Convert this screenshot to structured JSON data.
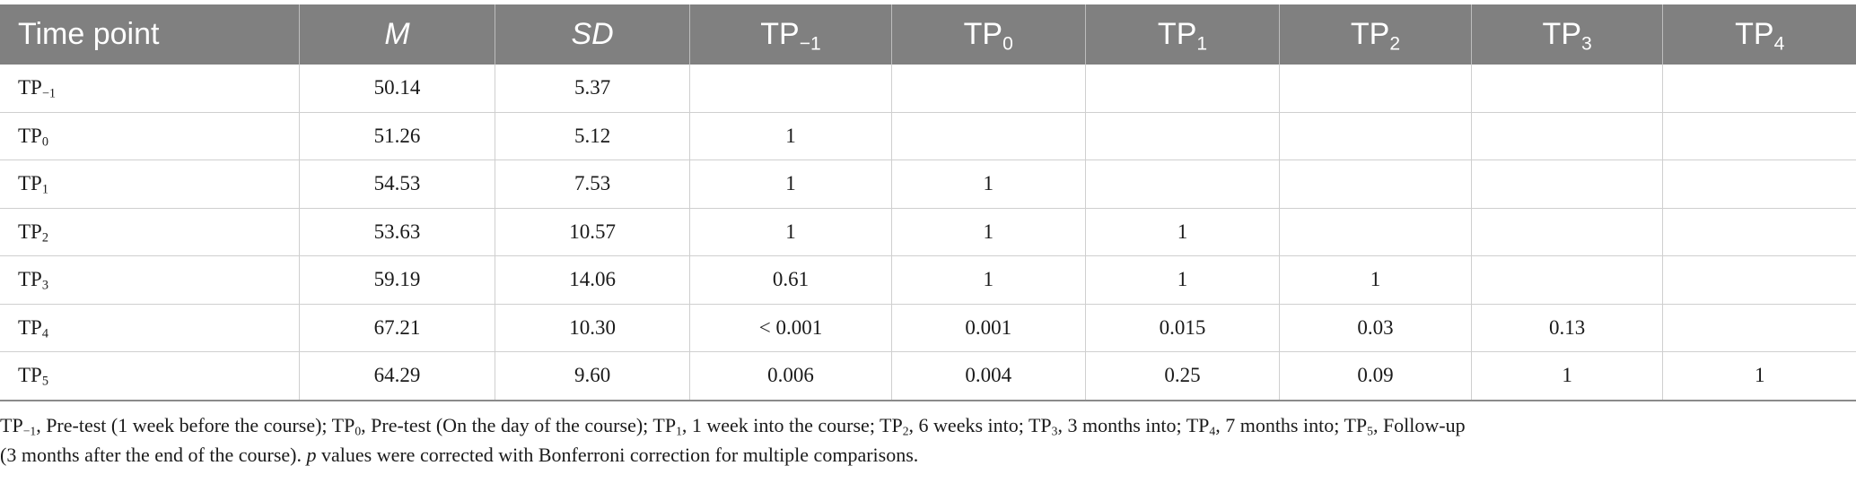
{
  "table": {
    "headers": [
      {
        "base": "Time point",
        "sub": ""
      },
      {
        "base": "M",
        "sub": ""
      },
      {
        "base": "SD",
        "sub": ""
      },
      {
        "base": "TP",
        "sub": "−1"
      },
      {
        "base": "TP",
        "sub": "0"
      },
      {
        "base": "TP",
        "sub": "1"
      },
      {
        "base": "TP",
        "sub": "2"
      },
      {
        "base": "TP",
        "sub": "3"
      },
      {
        "base": "TP",
        "sub": "4"
      }
    ],
    "rows": [
      {
        "label": "TP",
        "label_sub": "−1",
        "cells": [
          "50.14",
          "5.37",
          "",
          "",
          "",
          "",
          "",
          ""
        ]
      },
      {
        "label": "TP",
        "label_sub": "0",
        "cells": [
          "51.26",
          "5.12",
          "1",
          "",
          "",
          "",
          "",
          ""
        ]
      },
      {
        "label": "TP",
        "label_sub": "1",
        "cells": [
          "54.53",
          "7.53",
          "1",
          "1",
          "",
          "",
          "",
          ""
        ]
      },
      {
        "label": "TP",
        "label_sub": "2",
        "cells": [
          "53.63",
          "10.57",
          "1",
          "1",
          "1",
          "",
          "",
          ""
        ]
      },
      {
        "label": "TP",
        "label_sub": "3",
        "cells": [
          "59.19",
          "14.06",
          "0.61",
          "1",
          "1",
          "1",
          "",
          ""
        ]
      },
      {
        "label": "TP",
        "label_sub": "4",
        "cells": [
          "67.21",
          "10.30",
          "< 0.001",
          "0.001",
          "0.015",
          "0.03",
          "0.13",
          ""
        ]
      },
      {
        "label": "TP",
        "label_sub": "5",
        "cells": [
          "64.29",
          "9.60",
          "0.006",
          "0.004",
          "0.25",
          "0.09",
          "1",
          "1"
        ]
      }
    ]
  },
  "footnote": {
    "tp_m1_sub": "−1",
    "tp_m1_text": ", Pre-test (1 week before the course); ",
    "tp0_sub": "0",
    "tp0_text": ", Pre-test (On the day of the course); ",
    "tp1_sub": "1",
    "tp1_text": ", 1 week into the course; ",
    "tp2_sub": "2",
    "tp2_text": ", 6 weeks into; ",
    "tp3_sub": "3",
    "tp3_text": ", 3 months into; ",
    "tp4_sub": "4",
    "tp4_text": ", 7 months into; ",
    "tp5_sub": "5",
    "tp5_text": ", Follow-up",
    "line2_start": "(3 months after the end of the course). ",
    "p_italic": "p",
    "line2_end": " values were corrected with Bonferroni correction for multiple comparisons.",
    "tp_prefix": "TP"
  }
}
